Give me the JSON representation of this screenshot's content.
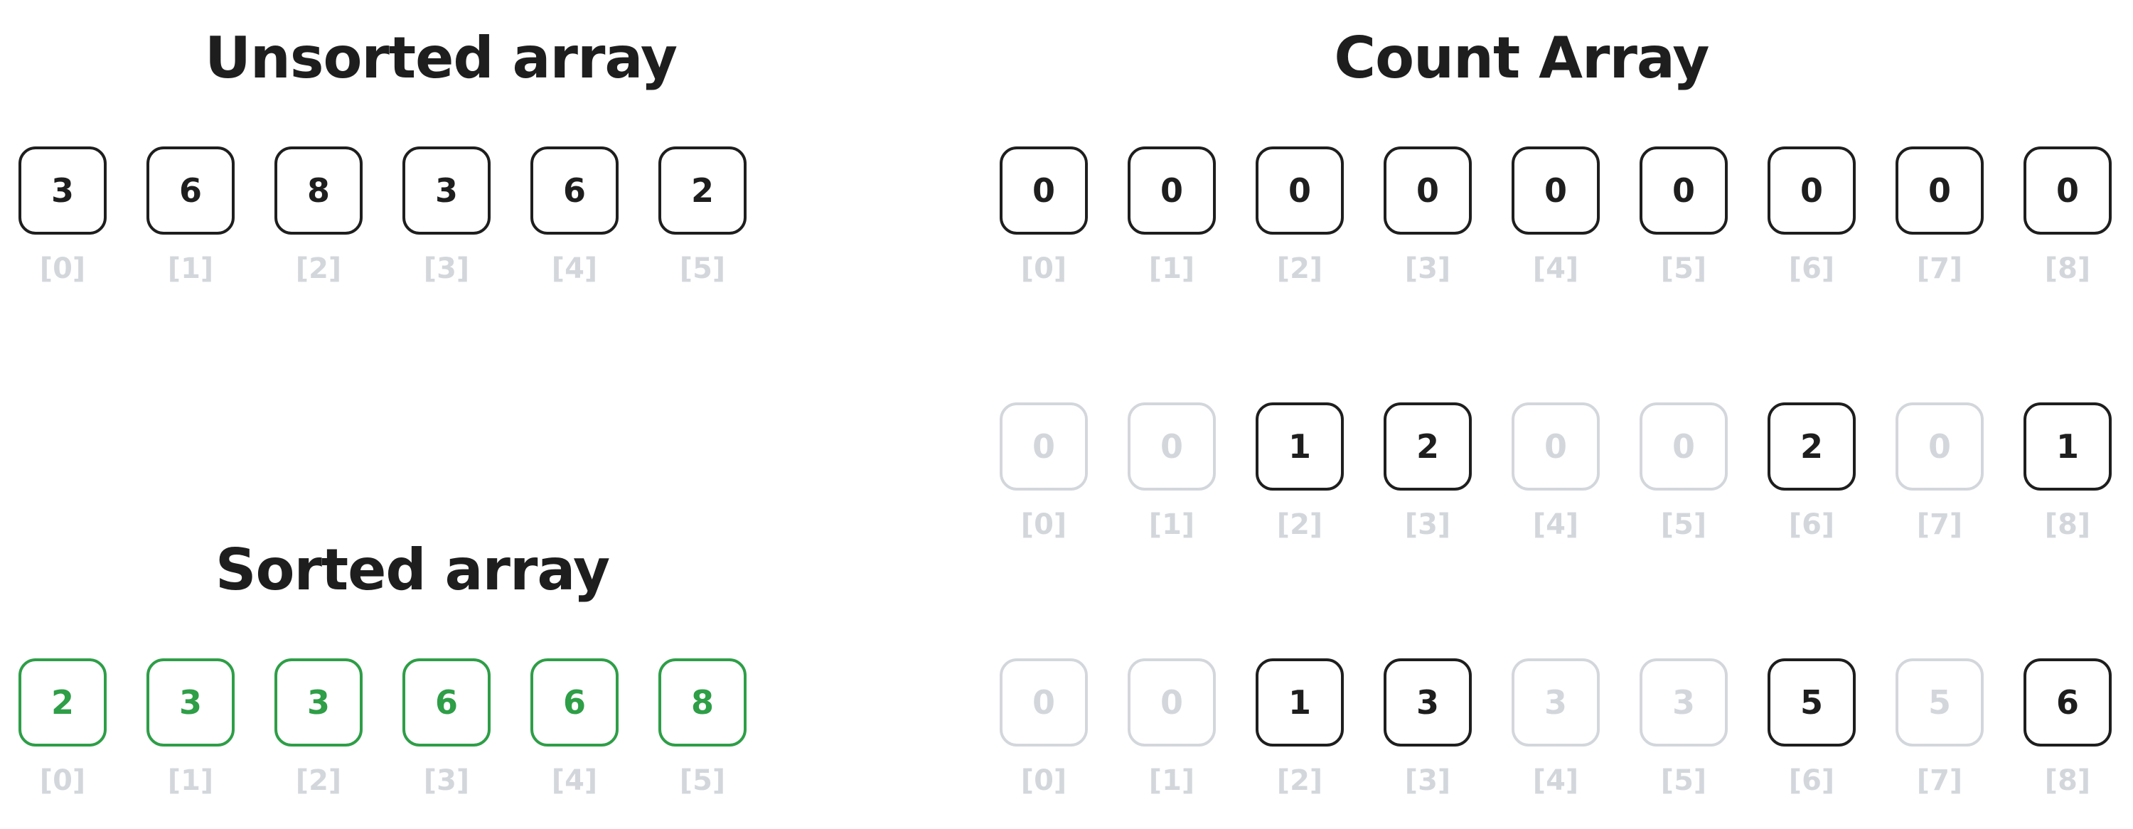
{
  "titles": {
    "unsorted": "Unsorted array",
    "count": "Count Array",
    "sorted": "Sorted array"
  },
  "colors": {
    "text": "#1e1e1e",
    "dim": "#d3d7dc",
    "sorted": "#2e9e47"
  },
  "unsorted_array": {
    "values": [
      "3",
      "6",
      "8",
      "3",
      "6",
      "2"
    ],
    "indices": [
      "[0]",
      "[1]",
      "[2]",
      "[3]",
      "[4]",
      "[5]"
    ]
  },
  "count_array_initial": {
    "values": [
      "0",
      "0",
      "0",
      "0",
      "0",
      "0",
      "0",
      "0",
      "0"
    ],
    "highlighted": [
      true,
      true,
      true,
      true,
      true,
      true,
      true,
      true,
      true
    ],
    "indices": [
      "[0]",
      "[1]",
      "[2]",
      "[3]",
      "[4]",
      "[5]",
      "[6]",
      "[7]",
      "[8]"
    ]
  },
  "count_array_counts": {
    "values": [
      "0",
      "0",
      "1",
      "2",
      "0",
      "0",
      "2",
      "0",
      "1"
    ],
    "highlighted": [
      false,
      false,
      true,
      true,
      false,
      false,
      true,
      false,
      true
    ],
    "indices": [
      "[0]",
      "[1]",
      "[2]",
      "[3]",
      "[4]",
      "[5]",
      "[6]",
      "[7]",
      "[8]"
    ]
  },
  "count_array_cumulative": {
    "values": [
      "0",
      "0",
      "1",
      "3",
      "3",
      "3",
      "5",
      "5",
      "6"
    ],
    "highlighted": [
      false,
      false,
      true,
      true,
      false,
      false,
      true,
      false,
      true
    ],
    "indices": [
      "[0]",
      "[1]",
      "[2]",
      "[3]",
      "[4]",
      "[5]",
      "[6]",
      "[7]",
      "[8]"
    ]
  },
  "sorted_array": {
    "values": [
      "2",
      "3",
      "3",
      "6",
      "6",
      "8"
    ],
    "indices": [
      "[0]",
      "[1]",
      "[2]",
      "[3]",
      "[4]",
      "[5]"
    ]
  }
}
